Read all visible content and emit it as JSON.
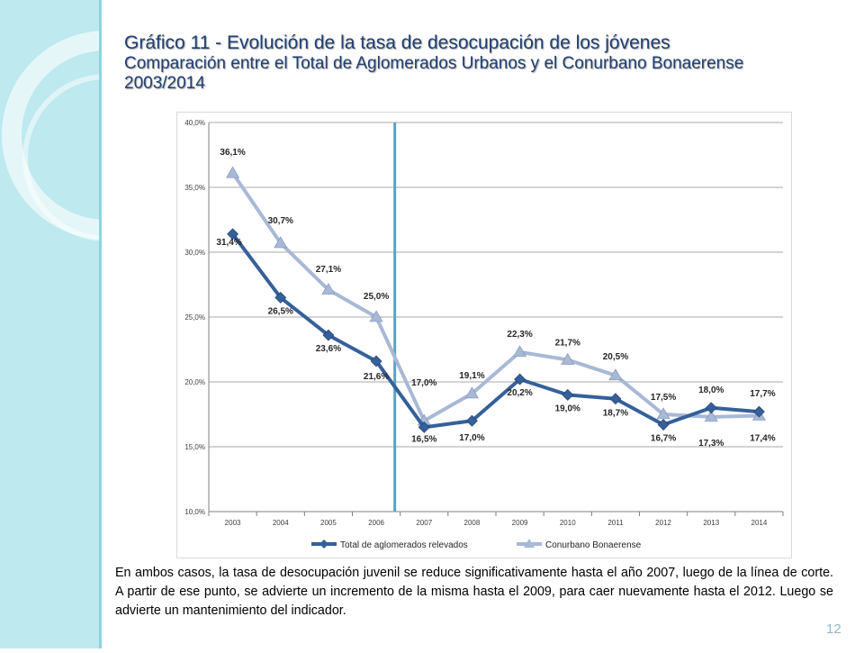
{
  "header": {
    "title": "Gráfico 11 - Evolución de la tasa de desocupación de los jóvenes",
    "subtitle": "Comparación entre el Total de Aglomerados Urbanos y el Conurbano Bonaerense",
    "period": "2003/2014"
  },
  "chart_data": {
    "type": "line",
    "categories": [
      "2003",
      "2004",
      "2005",
      "2006",
      "2007",
      "2008",
      "2009",
      "2010",
      "2011",
      "2012",
      "2013",
      "2014"
    ],
    "series": [
      {
        "name": "Total de aglomerados relevados",
        "values": [
          31.4,
          26.5,
          23.6,
          21.6,
          16.5,
          17.0,
          20.2,
          19.0,
          18.7,
          16.7,
          18.0,
          17.7
        ],
        "labels": [
          "31,4%",
          "26,5%",
          "23,6%",
          "21,6%",
          "16,5%",
          "17,0%",
          "20,2%",
          "19,0%",
          "18,7%",
          "16,7%",
          "18,0%",
          "17,7%"
        ],
        "color": "#35609a",
        "marker": "diamond"
      },
      {
        "name": "Conurbano Bonaerense",
        "values": [
          36.1,
          30.7,
          27.1,
          25.0,
          17.0,
          19.1,
          22.3,
          21.7,
          20.5,
          17.5,
          17.3,
          17.4
        ],
        "labels": [
          "36,1%",
          "30,7%",
          "27,1%",
          "25,0%",
          "17,0%",
          "19,1%",
          "22,3%",
          "21,7%",
          "20,5%",
          "17,5%",
          "17,3%",
          "17,4%"
        ],
        "color": "#a8b9d6",
        "marker": "triangle"
      }
    ],
    "yticks": [
      "10,0%",
      "15,0%",
      "20,0%",
      "25,0%",
      "30,0%",
      "35,0%",
      "40,0%"
    ],
    "ylim": [
      10,
      40
    ],
    "grid": true,
    "legend_position": "bottom",
    "cut_line_between": [
      "2006",
      "2007"
    ],
    "cut_line_color": "#5aa3c4"
  },
  "description": "En ambos casos, la tasa de desocupación juvenil se reduce significativamente hasta el año 2007, luego de la línea de corte. A partir de ese punto, se advierte un incremento de la misma hasta el 2009, para caer nuevamente hasta el 2012. Luego se advierte un mantenimiento del indicador.",
  "page_number": "12",
  "colors": {
    "band": "#bde9ef",
    "title": "#1f3f73"
  }
}
